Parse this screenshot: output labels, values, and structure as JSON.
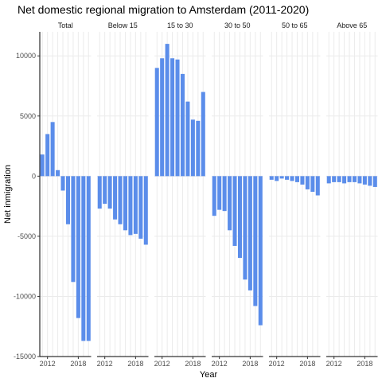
{
  "chart_data": {
    "type": "bar",
    "title": "Net domestic regional migration to Amsterdam (2011-2020)",
    "xlabel": "Year",
    "ylabel": "Net inmigration",
    "ylim": [
      -15000,
      12000
    ],
    "yticks": [
      -15000,
      -10000,
      -5000,
      0,
      5000,
      10000
    ],
    "ytick_labels": [
      "-15000",
      "-10000",
      "-5000",
      "0",
      "5000",
      "10000"
    ],
    "xticks": [
      2012,
      2018
    ],
    "xtick_labels": [
      "2012",
      "2018"
    ],
    "x": [
      2011,
      2012,
      2013,
      2014,
      2015,
      2016,
      2017,
      2018,
      2019,
      2020
    ],
    "bar_color": "#5b8dea",
    "grid": true,
    "facets": [
      {
        "name": "Total",
        "values": [
          1800,
          3500,
          4500,
          500,
          -1200,
          -4000,
          -8800,
          -11800,
          -13700,
          -13700
        ]
      },
      {
        "name": "Below 15",
        "values": [
          -2700,
          -2300,
          -2700,
          -3600,
          -4000,
          -4500,
          -4900,
          -4800,
          -5200,
          -5700
        ]
      },
      {
        "name": "15 to 30",
        "values": [
          9000,
          9800,
          11000,
          9800,
          9700,
          8500,
          6200,
          4700,
          4600,
          7000
        ]
      },
      {
        "name": "30 to 50",
        "values": [
          -3300,
          -2800,
          -2900,
          -4500,
          -5800,
          -6800,
          -8600,
          -9500,
          -10800,
          -12400
        ]
      },
      {
        "name": "50 to 65",
        "values": [
          -300,
          -400,
          -200,
          -300,
          -400,
          -500,
          -700,
          -1100,
          -1300,
          -1600
        ]
      },
      {
        "name": "Above 65",
        "values": [
          -600,
          -500,
          -500,
          -600,
          -500,
          -500,
          -600,
          -700,
          -800,
          -900
        ]
      }
    ]
  }
}
